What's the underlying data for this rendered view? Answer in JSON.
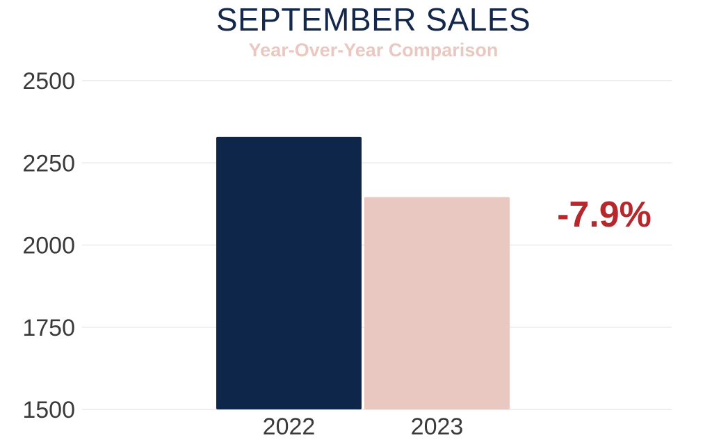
{
  "colors": {
    "title": "#13284b",
    "subtitle": "#e9c8c1",
    "grid": "#dddddd",
    "axis_text": "#3a3a3a",
    "annotation": "#b5282c"
  },
  "chart_data": {
    "type": "bar",
    "title": "SEPTEMBER SALES",
    "subtitle": "Year-Over-Year Comparison",
    "xlabel": "",
    "ylabel": "",
    "categories": [
      "2022",
      "2023"
    ],
    "values": [
      2329,
      2146
    ],
    "bar_colors": [
      "#0e2649",
      "#e8c8c1"
    ],
    "ylim": [
      1500,
      2500
    ],
    "yticks": [
      2500,
      2250,
      2000,
      1750,
      1500
    ],
    "grid": true,
    "legend": "none",
    "annotation": "-7.9%"
  }
}
